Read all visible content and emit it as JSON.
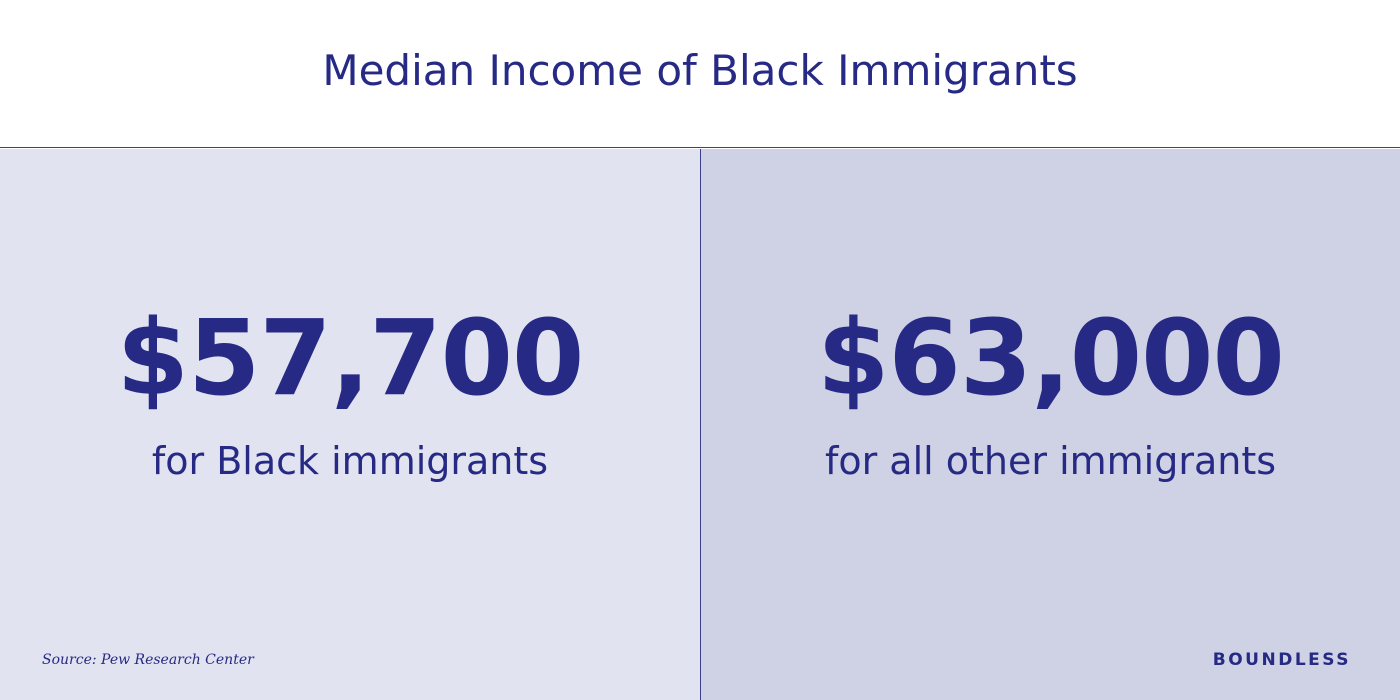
{
  "title": "Median Income of Black Immigrants",
  "panels": [
    {
      "value": "$57,700",
      "label": "for Black immigrants"
    },
    {
      "value": "$63,000",
      "label": "for all other immigrants"
    }
  ],
  "source": "Source: Pew Research Center",
  "brand": "BOUNDLESS"
}
